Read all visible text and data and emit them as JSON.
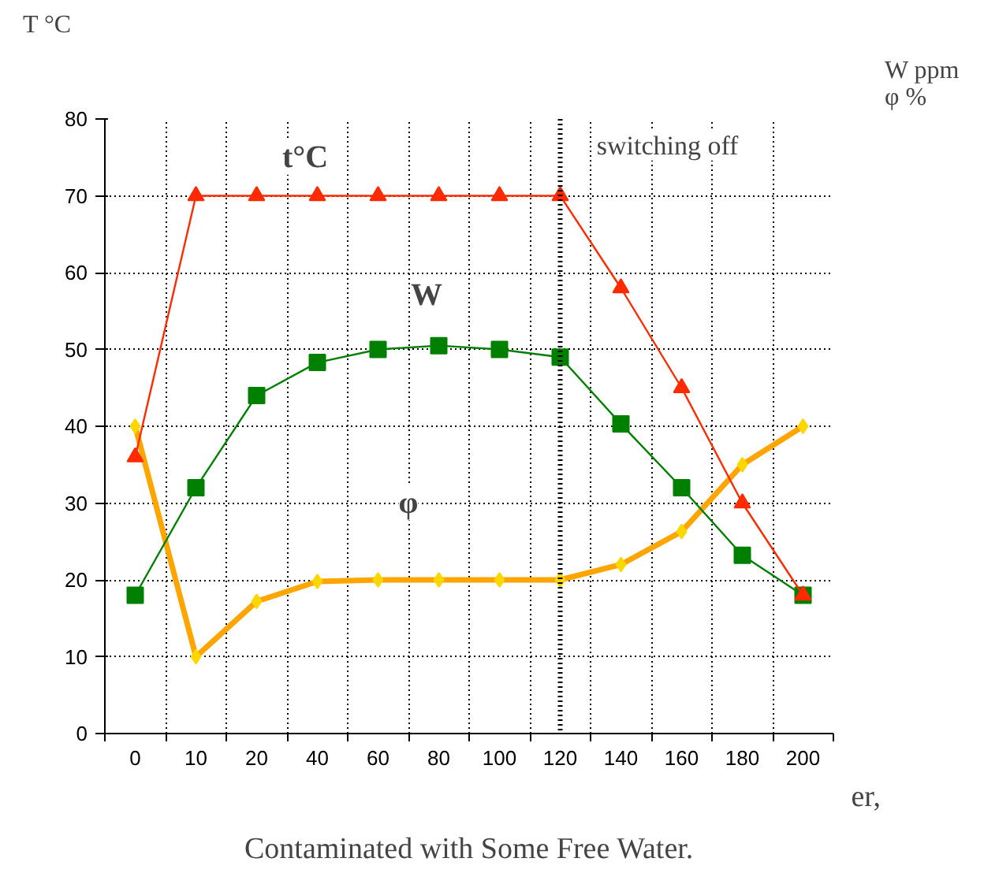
{
  "chart_data": {
    "type": "line",
    "ylabel": "T °C",
    "y2label": "W ppm\nφ %",
    "categories": [
      "0",
      "10",
      "20",
      "40",
      "60",
      "80",
      "100",
      "120",
      "140",
      "160",
      "180",
      "200"
    ],
    "ylim": [
      0,
      80
    ],
    "yticks": [
      0,
      10,
      20,
      30,
      40,
      50,
      60,
      70,
      80
    ],
    "grid": true,
    "series": [
      {
        "name": "t°C",
        "color": "#ff2a00",
        "marker": "triangle",
        "values": [
          36,
          70,
          70,
          70,
          70,
          70,
          70,
          70,
          58,
          45,
          30,
          18
        ]
      },
      {
        "name": "W",
        "color": "#008000",
        "marker": "square",
        "values": [
          18,
          32,
          44,
          48.3,
          50,
          50.5,
          50,
          49,
          40.3,
          32,
          23.2,
          18
        ]
      },
      {
        "name": "φ",
        "color": "#ffa500",
        "marker": "diamond",
        "values": [
          40,
          10,
          17.2,
          19.8,
          20,
          20,
          20,
          20,
          22,
          26.3,
          35,
          40
        ]
      }
    ],
    "ref_lines": [
      {
        "axis": "x",
        "value": "120",
        "label": "switching off",
        "line_style": "dotted",
        "color": "#000000"
      }
    ],
    "annotations": [
      "er,",
      "Contaminated with Some Free Water."
    ]
  }
}
